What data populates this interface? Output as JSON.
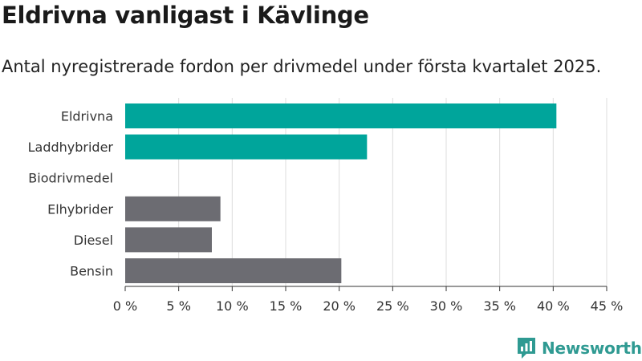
{
  "title": "Eldrivna vanligast i Kävlinge",
  "subtitle": "Antal nyregistrerade fordon per drivmedel under första kvartalet 2025.",
  "brand": {
    "name": "Newsworthy",
    "color": "#2f9a92"
  },
  "colors": {
    "highlight": "#00a59b",
    "other": "#6c6c72",
    "grid": "#dcdcdc",
    "axis": "#333333"
  },
  "chart_data": {
    "type": "bar",
    "orientation": "horizontal",
    "categories": [
      "Eldrivna",
      "Laddhybrider",
      "Biodrivmedel",
      "Elhybrider",
      "Diesel",
      "Bensin"
    ],
    "values": [
      40.3,
      22.6,
      0,
      8.9,
      8.1,
      20.2
    ],
    "bar_colors": [
      "#00a59b",
      "#00a59b",
      "#00a59b",
      "#6c6c72",
      "#6c6c72",
      "#6c6c72"
    ],
    "xlim": [
      0,
      45
    ],
    "xticks": [
      0,
      5,
      10,
      15,
      20,
      25,
      30,
      35,
      40,
      45
    ],
    "xtick_labels": [
      "0 %",
      "5 %",
      "10 %",
      "15 %",
      "20 %",
      "25 %",
      "30 %",
      "35 %",
      "40 %",
      "45 %"
    ],
    "grid": true,
    "title": "Eldrivna vanligast i Kävlinge",
    "subtitle": "Antal nyregistrerade fordon per drivmedel under första kvartalet 2025."
  }
}
